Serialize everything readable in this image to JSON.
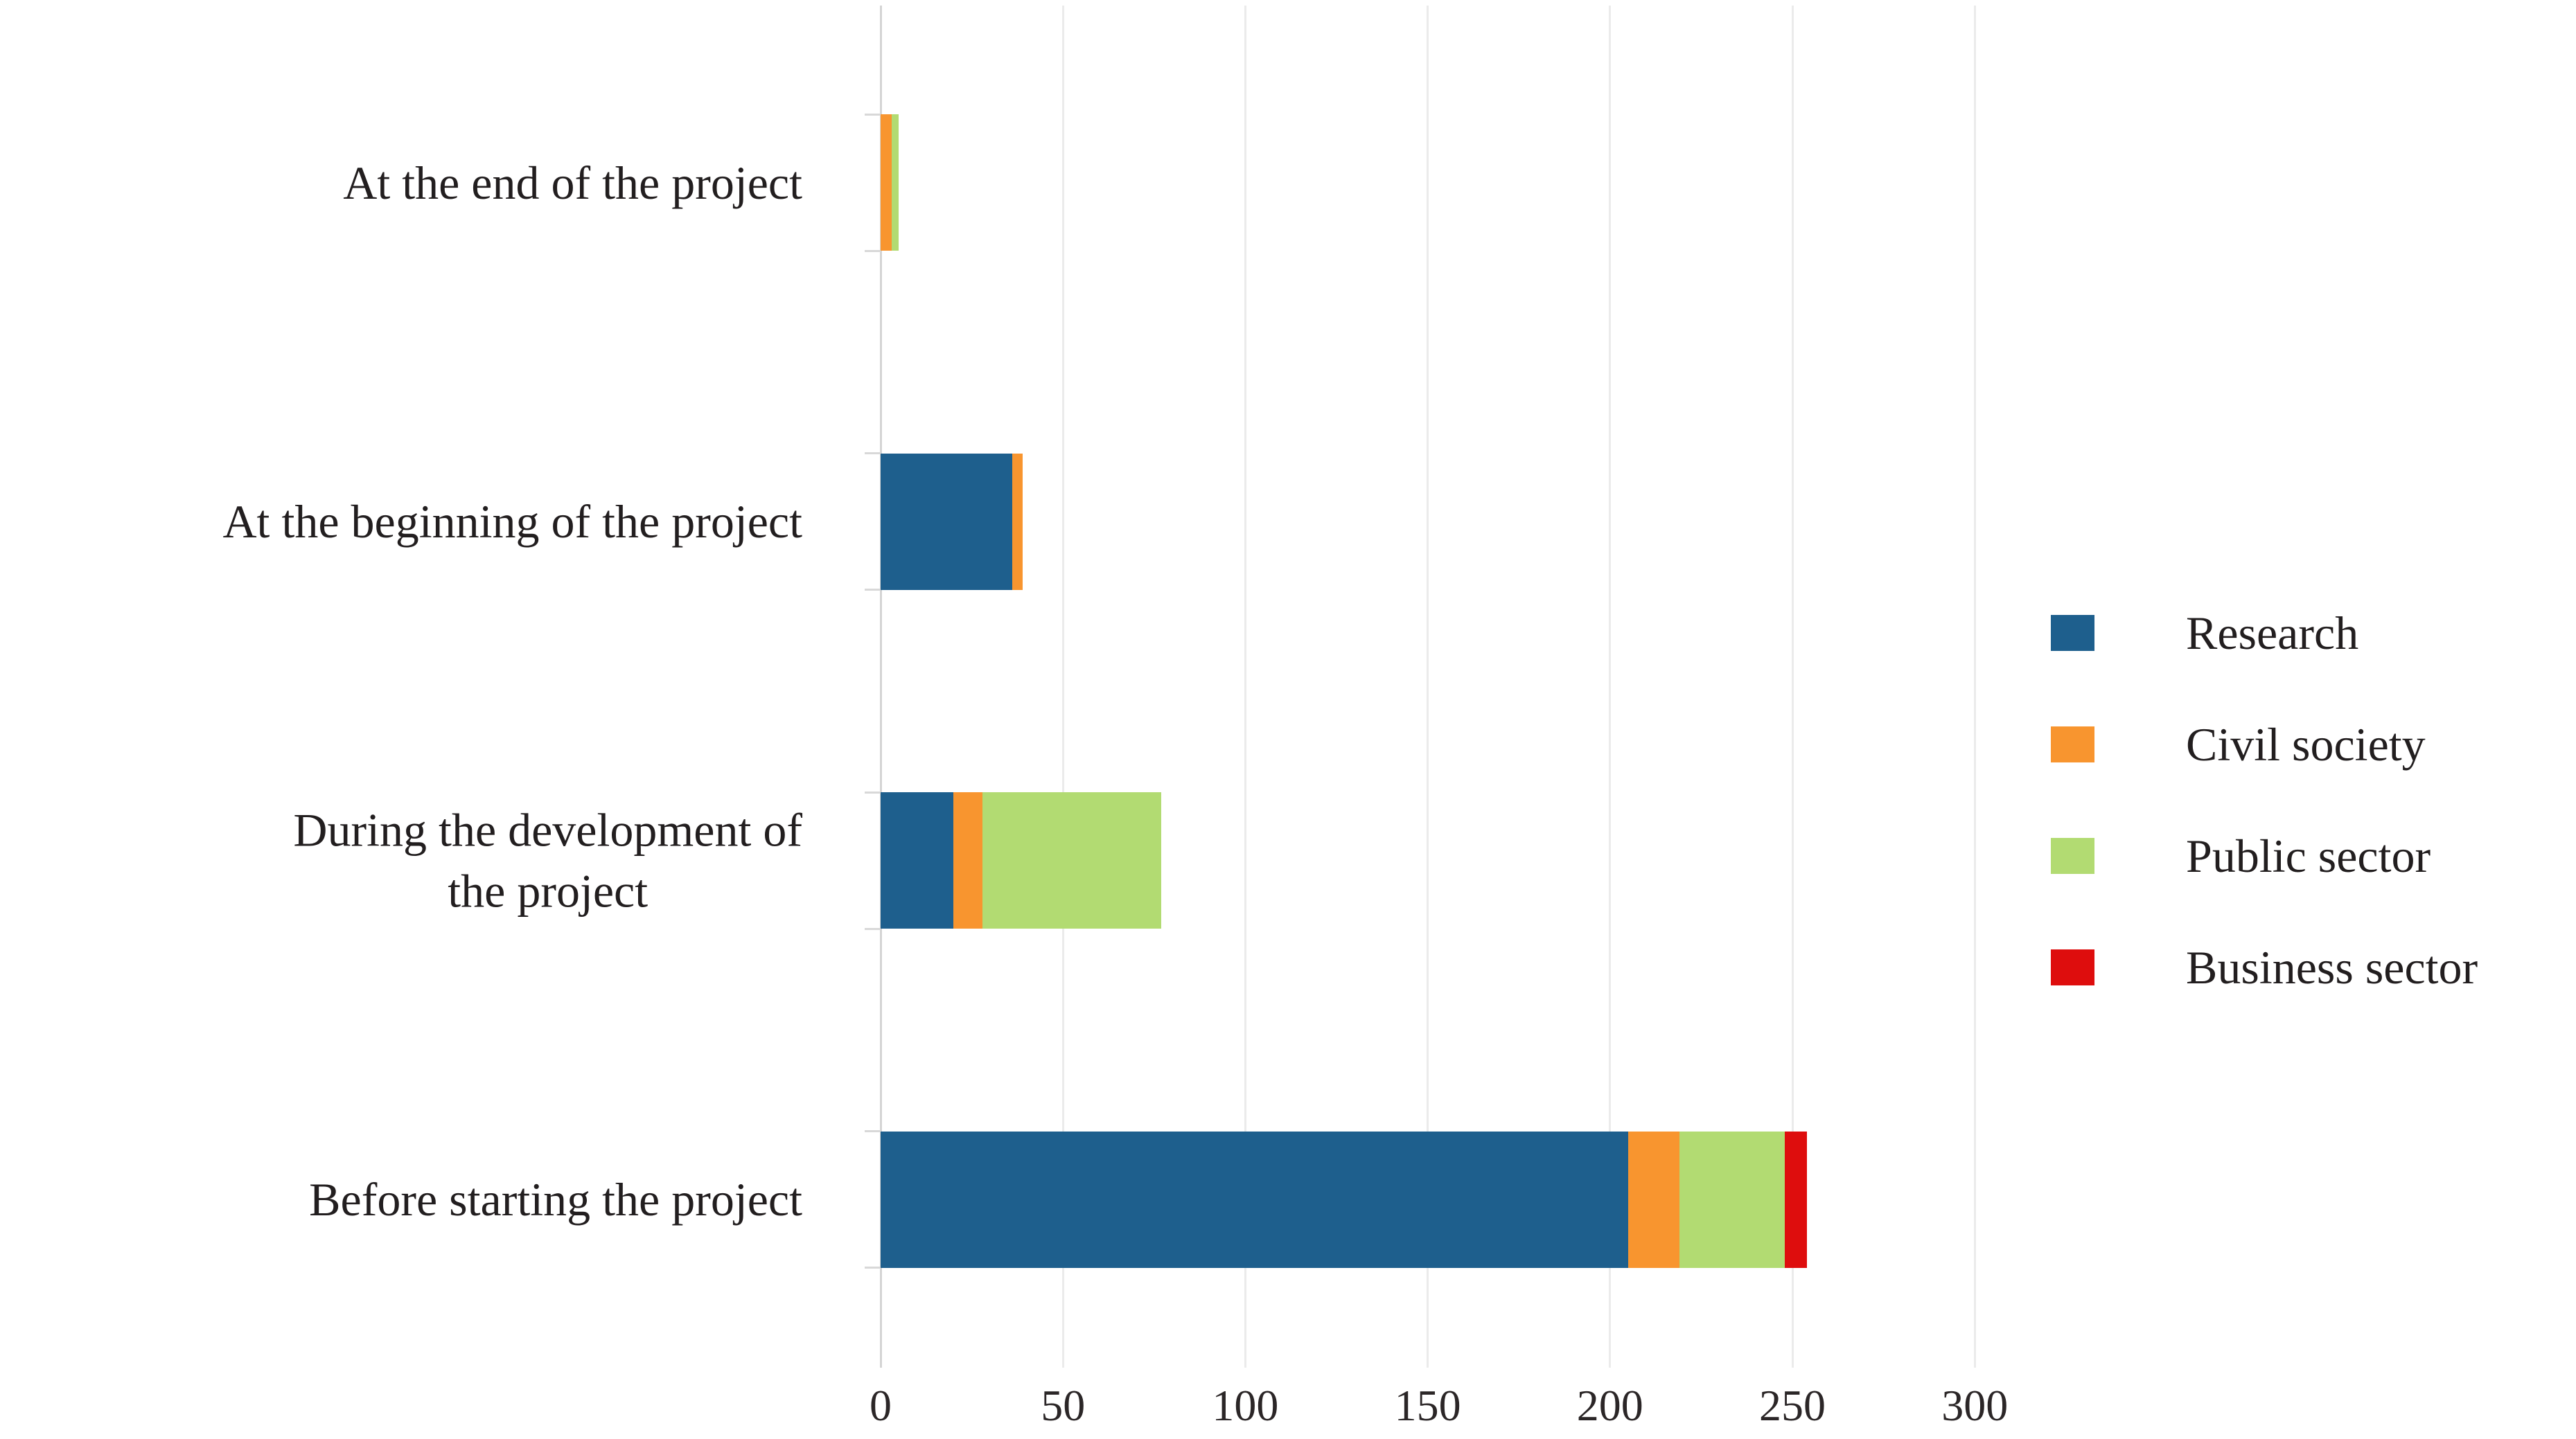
{
  "chart_data": {
    "type": "bar",
    "orientation": "horizontal",
    "stacked": true,
    "title": "",
    "xlabel": "",
    "ylabel": "",
    "categories": [
      "At the end of the project",
      "At the beginning of the project",
      "During the development of\nthe project",
      "Before starting the project"
    ],
    "series": [
      {
        "name": "Research",
        "color": "#1E5F8D",
        "values": [
          0,
          36,
          20,
          205
        ]
      },
      {
        "name": "Civil society",
        "color": "#F8952F",
        "values": [
          3,
          3,
          8,
          14
        ]
      },
      {
        "name": "Public sector",
        "color": "#B2DB72",
        "values": [
          2,
          0,
          49,
          29
        ]
      },
      {
        "name": "Business sector",
        "color": "#DE0D0D",
        "values": [
          0,
          0,
          0,
          6
        ]
      }
    ],
    "xlim": [
      0,
      300
    ],
    "xticks": [
      0,
      50,
      100,
      150,
      200,
      250,
      300
    ],
    "grid": true,
    "legend_position": "right",
    "background_color": "#FFFFFF",
    "grid_color": "#EBEBEB",
    "axis_color": "#D4D4D4",
    "text_color": "#221E1F"
  }
}
